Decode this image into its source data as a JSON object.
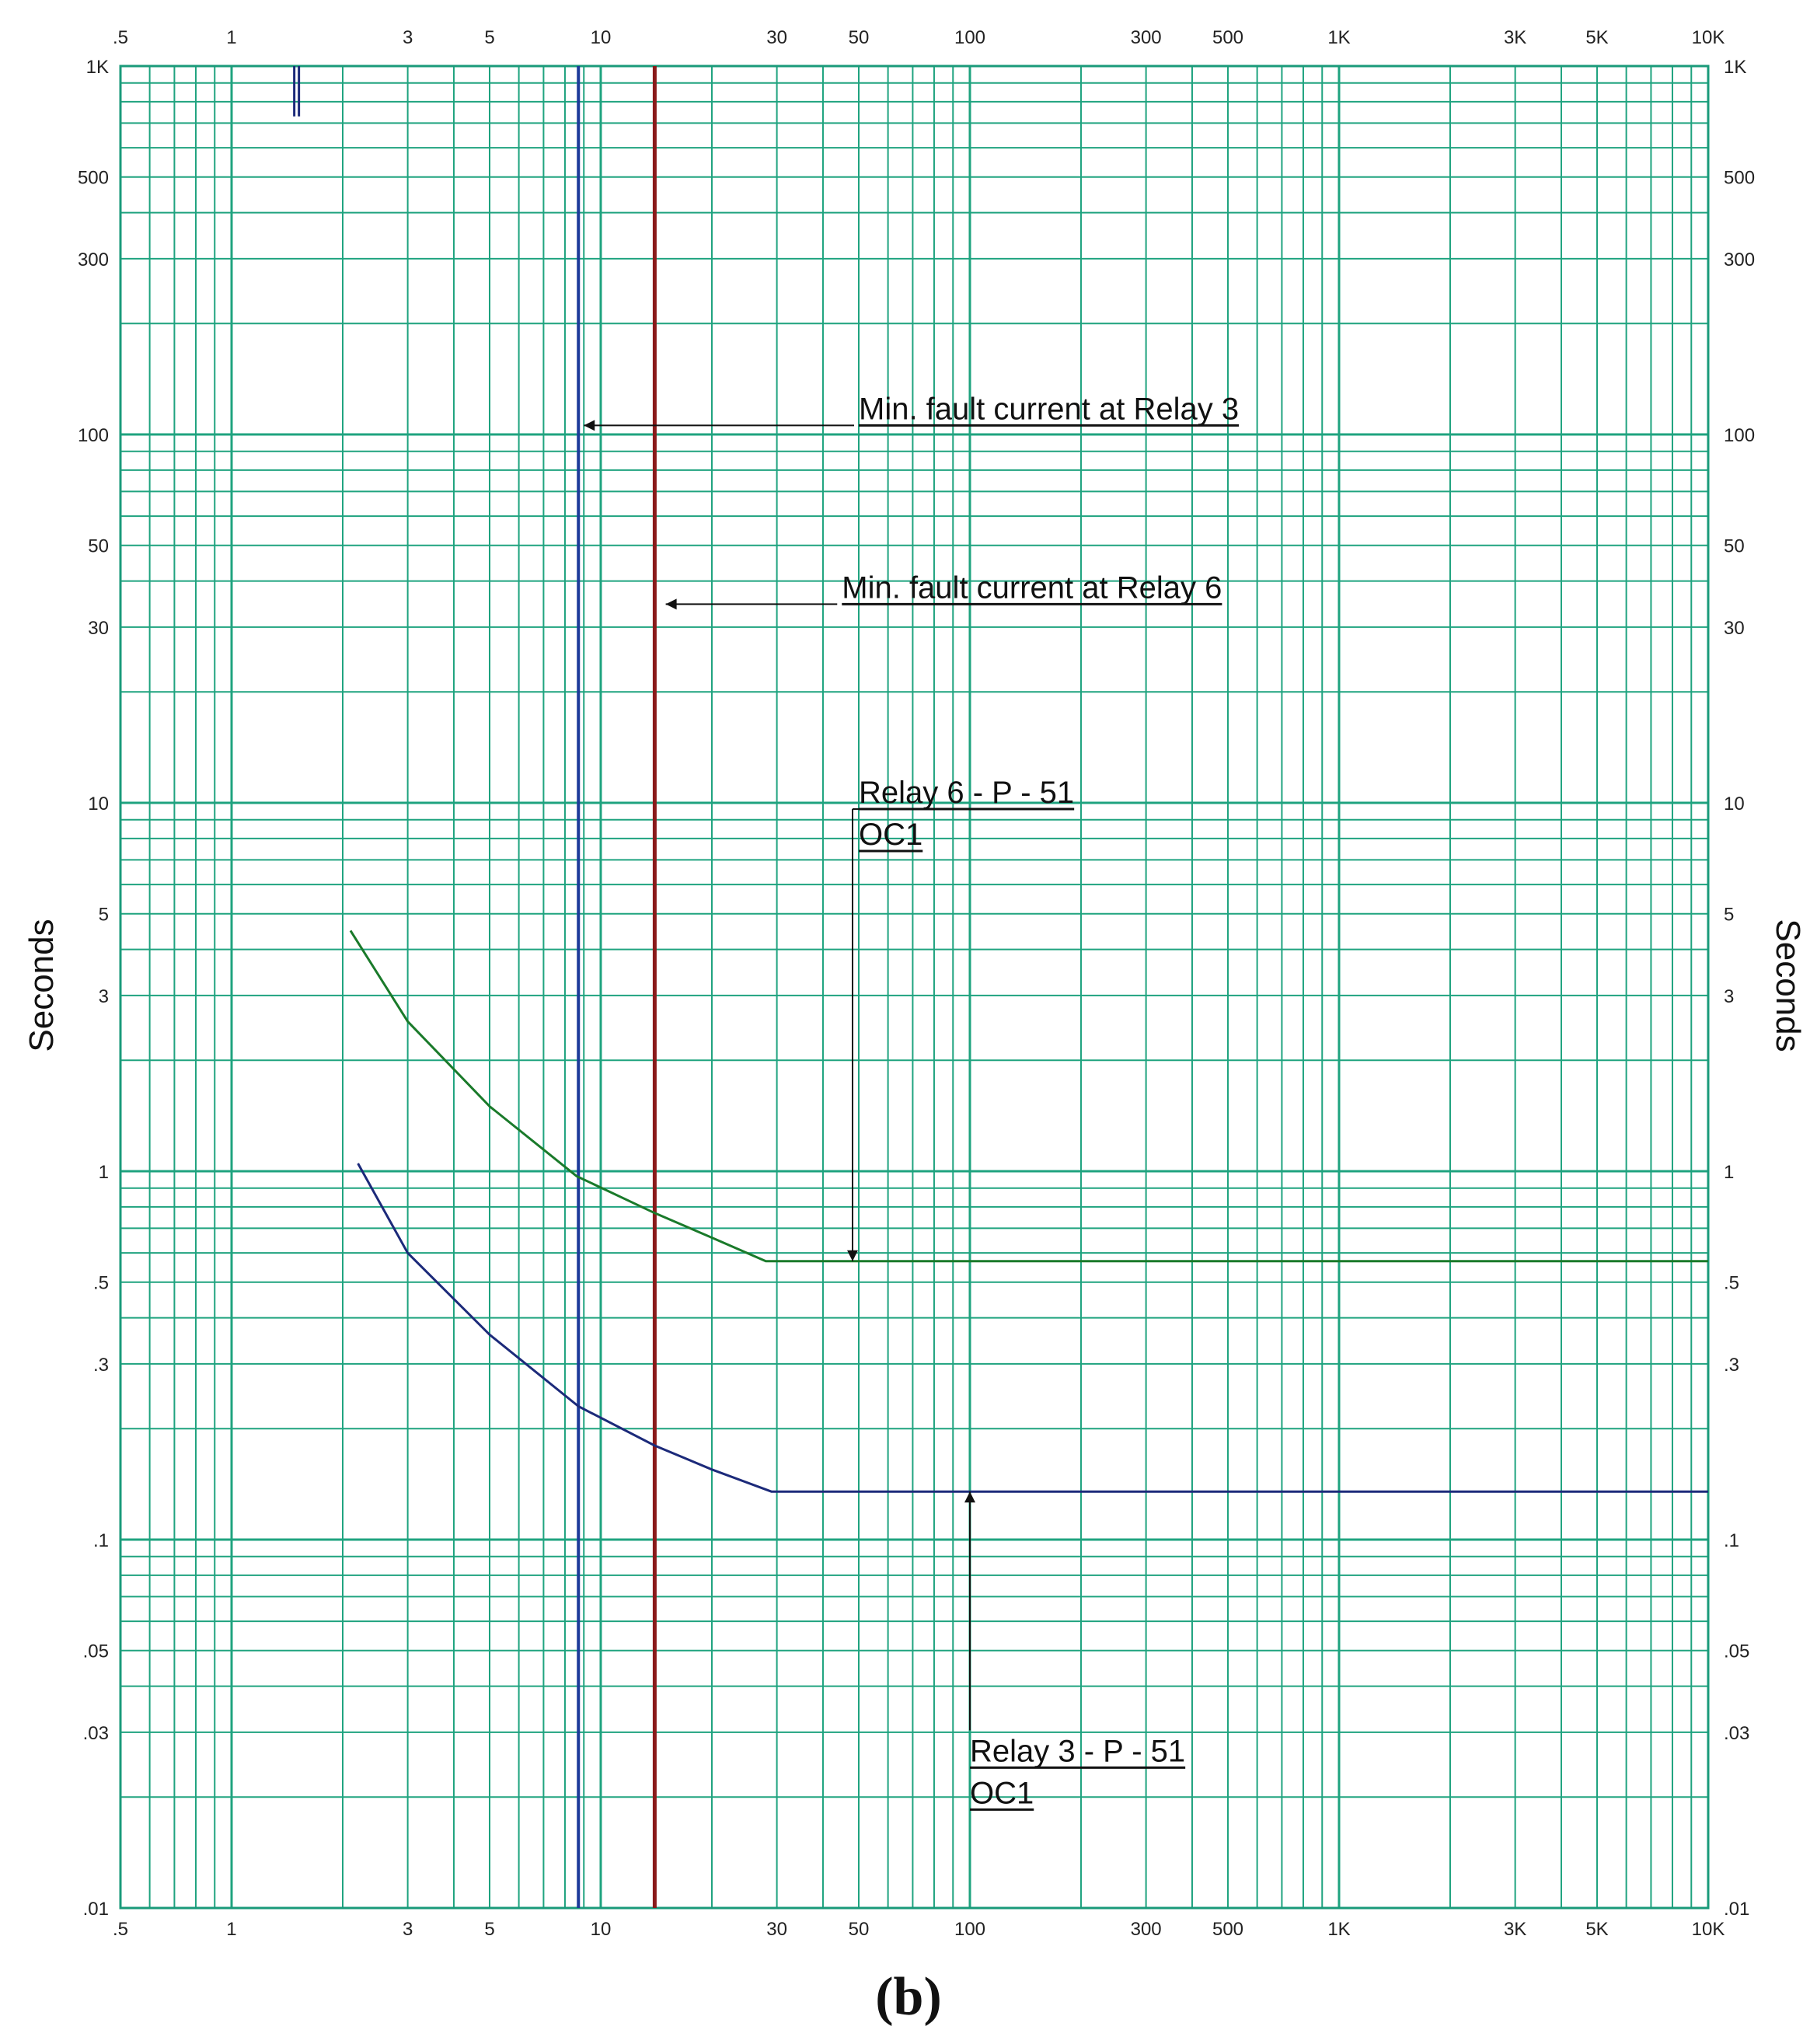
{
  "caption": "(b)",
  "chart_data": {
    "type": "line",
    "x_scale": "log",
    "y_scale": "log",
    "xlim": [
      0.5,
      10000
    ],
    "ylim": [
      0.01,
      1000
    ],
    "grid": true,
    "x_tick_labels": [
      {
        "value": 0.5,
        "label": ".5"
      },
      {
        "value": 1,
        "label": "1"
      },
      {
        "value": 3,
        "label": "3"
      },
      {
        "value": 5,
        "label": "5"
      },
      {
        "value": 10,
        "label": "10"
      },
      {
        "value": 30,
        "label": "30"
      },
      {
        "value": 50,
        "label": "50"
      },
      {
        "value": 100,
        "label": "100"
      },
      {
        "value": 300,
        "label": "300"
      },
      {
        "value": 500,
        "label": "500"
      },
      {
        "value": 1000,
        "label": "1K"
      },
      {
        "value": 3000,
        "label": "3K"
      },
      {
        "value": 5000,
        "label": "5K"
      },
      {
        "value": 10000,
        "label": "10K"
      }
    ],
    "y_tick_labels": [
      {
        "value": 1000,
        "label": "1K"
      },
      {
        "value": 500,
        "label": "500"
      },
      {
        "value": 300,
        "label": "300"
      },
      {
        "value": 100,
        "label": "100"
      },
      {
        "value": 50,
        "label": "50"
      },
      {
        "value": 30,
        "label": "30"
      },
      {
        "value": 10,
        "label": "10"
      },
      {
        "value": 5,
        "label": "5"
      },
      {
        "value": 3,
        "label": "3"
      },
      {
        "value": 1,
        "label": "1"
      },
      {
        "value": 0.5,
        "label": ".5"
      },
      {
        "value": 0.3,
        "label": ".3"
      },
      {
        "value": 0.1,
        "label": ".1"
      },
      {
        "value": 0.05,
        "label": ".05"
      },
      {
        "value": 0.03,
        "label": ".03"
      },
      {
        "value": 0.01,
        "label": ".01"
      }
    ],
    "ylabel": "Seconds",
    "xlabel": "",
    "series": [
      {
        "color": "#1a7a2a",
        "points": [
          [
            2.1,
            4.5
          ],
          [
            3,
            2.55
          ],
          [
            5,
            1.5
          ],
          [
            8.6,
            0.97
          ],
          [
            14,
            0.77
          ],
          [
            20,
            0.66
          ],
          [
            28,
            0.57
          ],
          [
            10000,
            0.57
          ]
        ]
      },
      {
        "color": "#1c2a7a",
        "points": [
          [
            2.2,
            1.05
          ],
          [
            3,
            0.6
          ],
          [
            5,
            0.36
          ],
          [
            8.7,
            0.23
          ],
          [
            14,
            0.18
          ],
          [
            20,
            0.155
          ],
          [
            29,
            0.135
          ],
          [
            10000,
            0.135
          ]
        ]
      }
    ],
    "vertical_lines": [
      {
        "x": 8.7,
        "color": "#1c3a9a"
      },
      {
        "x": 14,
        "color": "#8a1a1a"
      }
    ],
    "marker": {
      "x": 1.5,
      "y_from": 1000,
      "y_to": 730,
      "color": "#1c2a7a"
    },
    "annotations": [
      {
        "text": "Min. fault current at Relay 3",
        "x": 50,
        "y": 110,
        "arrow_to": [
          9,
          110
        ]
      },
      {
        "text": "Min. fault current at Relay 6",
        "x": 45,
        "y": 36,
        "arrow_to": [
          15,
          32
        ]
      },
      {
        "lines": [
          "Relay 6 - P - 51",
          "OC1"
        ],
        "x": 50,
        "y": 10,
        "arrow_to": [
          47,
          0.57
        ]
      },
      {
        "lines": [
          "Relay 3 - P - 51",
          "OC1"
        ],
        "x": 100,
        "y": 0.025,
        "arrow_to": [
          100,
          0.135
        ]
      }
    ]
  }
}
